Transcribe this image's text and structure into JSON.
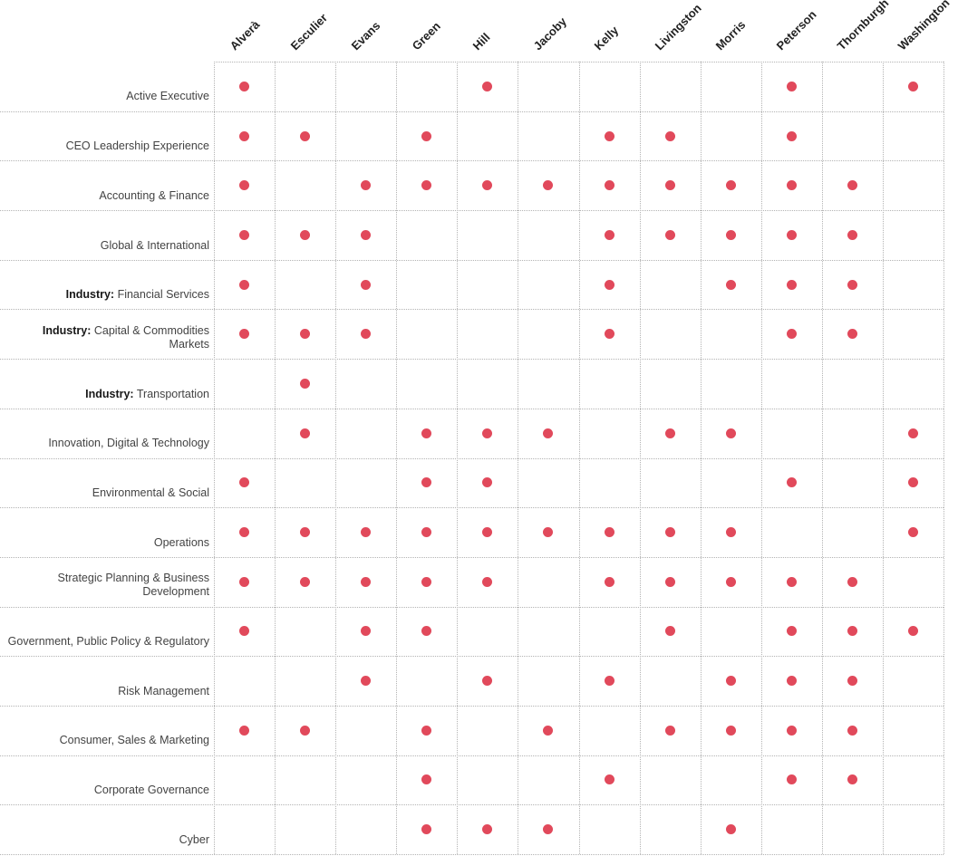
{
  "chart_data": {
    "type": "heatmap",
    "legend_position": "none",
    "grid": "dotted",
    "dot_color": "#e1495b",
    "grid_color": "#b3b3b3",
    "columns": [
      "Alverà",
      "Esculier",
      "Evans",
      "Green",
      "Hill",
      "Jacoby",
      "Kelly",
      "Livingston",
      "Morris",
      "Peterson",
      "Thornburgh",
      "Washington"
    ],
    "rows": [
      {
        "bold_prefix": "",
        "label": "Active Executive",
        "values": [
          1,
          0,
          0,
          0,
          1,
          0,
          0,
          0,
          0,
          1,
          0,
          1
        ]
      },
      {
        "bold_prefix": "",
        "label": "CEO Leadership Experience",
        "values": [
          1,
          1,
          0,
          1,
          0,
          0,
          1,
          1,
          0,
          1,
          0,
          0
        ]
      },
      {
        "bold_prefix": "",
        "label": "Accounting & Finance",
        "values": [
          1,
          0,
          1,
          1,
          1,
          1,
          1,
          1,
          1,
          1,
          1,
          0
        ]
      },
      {
        "bold_prefix": "",
        "label": "Global & International",
        "values": [
          1,
          1,
          1,
          0,
          0,
          0,
          1,
          1,
          1,
          1,
          1,
          0
        ]
      },
      {
        "bold_prefix": "Industry:",
        "label": " Financial Services",
        "values": [
          1,
          0,
          1,
          0,
          0,
          0,
          1,
          0,
          1,
          1,
          1,
          0
        ]
      },
      {
        "bold_prefix": "Industry:",
        "label": " Capital & Commodities\nMarkets",
        "values": [
          1,
          1,
          1,
          0,
          0,
          0,
          1,
          0,
          0,
          1,
          1,
          0
        ]
      },
      {
        "bold_prefix": "Industry:",
        "label": " Transportation",
        "values": [
          0,
          1,
          0,
          0,
          0,
          0,
          0,
          0,
          0,
          0,
          0,
          0
        ]
      },
      {
        "bold_prefix": "",
        "label": "Innovation, Digital & Technology",
        "values": [
          0,
          1,
          0,
          1,
          1,
          1,
          0,
          1,
          1,
          0,
          0,
          1
        ]
      },
      {
        "bold_prefix": "",
        "label": "Environmental & Social",
        "values": [
          1,
          0,
          0,
          1,
          1,
          0,
          0,
          0,
          0,
          1,
          0,
          1
        ]
      },
      {
        "bold_prefix": "",
        "label": "Operations",
        "values": [
          1,
          1,
          1,
          1,
          1,
          1,
          1,
          1,
          1,
          0,
          0,
          1
        ]
      },
      {
        "bold_prefix": "",
        "label": "Strategic Planning & Business\nDevelopment",
        "values": [
          1,
          1,
          1,
          1,
          1,
          0,
          1,
          1,
          1,
          1,
          1,
          0
        ]
      },
      {
        "bold_prefix": "",
        "label": "Government, Public Policy & Regulatory",
        "values": [
          1,
          0,
          1,
          1,
          0,
          0,
          0,
          1,
          0,
          1,
          1,
          1
        ]
      },
      {
        "bold_prefix": "",
        "label": "Risk Management",
        "values": [
          0,
          0,
          1,
          0,
          1,
          0,
          1,
          0,
          1,
          1,
          1,
          0
        ]
      },
      {
        "bold_prefix": "",
        "label": "Consumer, Sales & Marketing",
        "values": [
          1,
          1,
          0,
          1,
          0,
          1,
          0,
          1,
          1,
          1,
          1,
          0
        ]
      },
      {
        "bold_prefix": "",
        "label": "Corporate Governance",
        "values": [
          0,
          0,
          0,
          1,
          0,
          0,
          1,
          0,
          0,
          1,
          1,
          0
        ]
      },
      {
        "bold_prefix": "",
        "label": "Cyber",
        "values": [
          0,
          0,
          0,
          1,
          1,
          1,
          0,
          0,
          1,
          0,
          0,
          0
        ]
      }
    ]
  }
}
